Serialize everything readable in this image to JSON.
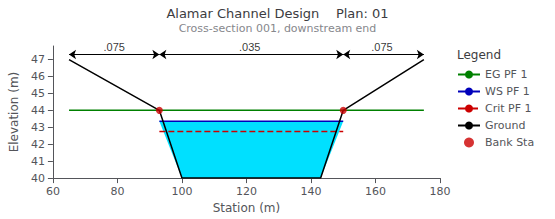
{
  "chart_data": {
    "type": "line",
    "title": "Alamar Channel Design    Plan: 01",
    "subtitle": "Cross-section 001, downstream end",
    "xlabel": "Station (m)",
    "ylabel": "Elevation (m)",
    "xlim": [
      60,
      180
    ],
    "ylim": [
      40,
      47.8
    ],
    "xticks": [
      60,
      80,
      100,
      120,
      140,
      160,
      180
    ],
    "yticks": [
      40,
      41,
      42,
      43,
      44,
      45,
      46,
      47
    ],
    "grid": false,
    "legend": "right",
    "legend_title": "Legend",
    "series": [
      {
        "name": "EG PF 1",
        "type": "line",
        "color": "#008000",
        "line_style": "solid",
        "x": [
          65,
          175
        ],
        "values": [
          44.0,
          44.0
        ]
      },
      {
        "name": "WS PF 1",
        "type": "line",
        "color": "#0000bb",
        "line_style": "solid",
        "x": [
          93,
          150
        ],
        "values": [
          43.35,
          43.35
        ]
      },
      {
        "name": "Crit PF 1",
        "type": "line",
        "color": "#cc0000",
        "line_style": "dashed",
        "x": [
          93,
          150
        ],
        "values": [
          42.75,
          42.75
        ]
      },
      {
        "name": "Ground",
        "type": "line",
        "color": "#000000",
        "line_style": "solid",
        "x": [
          65,
          93,
          100,
          143,
          150,
          175
        ],
        "values": [
          47,
          44,
          40,
          40,
          44,
          47
        ]
      },
      {
        "name": "Bank Sta",
        "type": "scatter",
        "color": "#cc0000",
        "marker": "circle",
        "x": [
          93,
          150
        ],
        "values": [
          44,
          44
        ]
      }
    ],
    "fill": {
      "color": "#00e0ff",
      "x": [
        93,
        100,
        143,
        150,
        93
      ],
      "values": [
        43.35,
        40,
        40,
        43.35,
        43.35
      ]
    },
    "arrows": {
      "color": "#000000",
      "y": 47.3,
      "segments": [
        {
          "x_start": 65,
          "x_end": 93,
          "label": ".075",
          "label_x": 79
        },
        {
          "x_start": 93,
          "x_end": 150,
          "label": ".035",
          "label_x": 121
        },
        {
          "x_start": 150,
          "x_end": 175,
          "label": ".075",
          "label_x": 162
        }
      ]
    }
  }
}
